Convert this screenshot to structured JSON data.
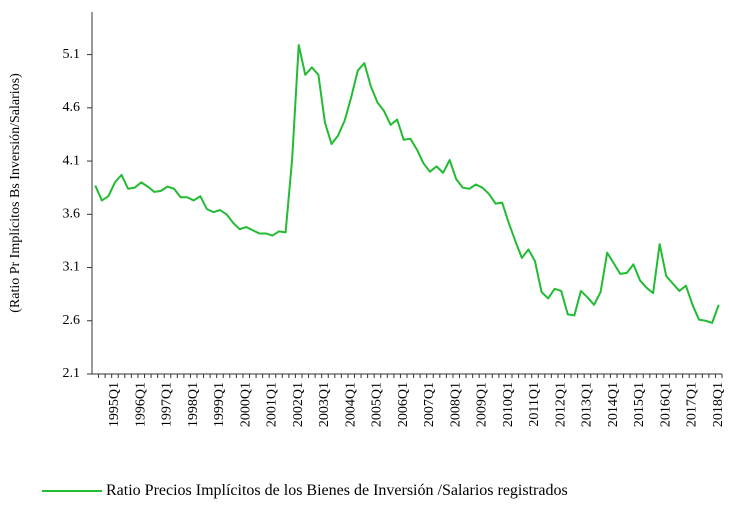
{
  "chart_data": {
    "type": "line",
    "y_label": "(Ratio Pr Implícitos Bs Inversión/Salarios)",
    "categories": [
      null,
      null,
      null,
      "1995Q1",
      null,
      null,
      null,
      "1996Q1",
      null,
      null,
      null,
      "1997Q1",
      null,
      null,
      null,
      "1998Q1",
      null,
      null,
      null,
      "1999Q1",
      null,
      null,
      null,
      "2000Q1",
      null,
      null,
      null,
      "2001Q1",
      null,
      null,
      null,
      "2002Q1",
      null,
      null,
      null,
      "2003Q1",
      null,
      null,
      null,
      "2004Q1",
      null,
      null,
      null,
      "2005Q1",
      null,
      null,
      null,
      "2006Q1",
      null,
      null,
      null,
      "2007Q1",
      null,
      null,
      null,
      "2008Q1",
      null,
      null,
      null,
      "2009Q1",
      null,
      null,
      null,
      "2010Q1",
      null,
      null,
      null,
      "2011Q1",
      null,
      null,
      null,
      "2012Q1",
      null,
      null,
      null,
      "2013Q1",
      null,
      null,
      null,
      "2014Q1",
      null,
      null,
      null,
      "2015Q1",
      null,
      null,
      null,
      "2016Q1",
      null,
      null,
      null,
      "2017Q1",
      null,
      null,
      null,
      "2018Q1"
    ],
    "series": [
      {
        "name": "Ratio Precios Implícitos de los Bienes de Inversión /Salarios registrados",
        "color": "#22bb33",
        "values": [
          3.87,
          3.73,
          3.77,
          3.9,
          3.97,
          3.84,
          3.85,
          3.9,
          3.86,
          3.81,
          3.82,
          3.86,
          3.84,
          3.76,
          3.76,
          3.73,
          3.77,
          3.65,
          3.62,
          3.64,
          3.6,
          3.52,
          3.46,
          3.48,
          3.45,
          3.42,
          3.42,
          3.4,
          3.44,
          3.43,
          4.12,
          5.19,
          4.91,
          4.98,
          4.91,
          4.46,
          4.26,
          4.34,
          4.48,
          4.7,
          4.95,
          5.02,
          4.8,
          4.65,
          4.57,
          4.44,
          4.49,
          4.3,
          4.31,
          4.21,
          4.08,
          4.0,
          4.05,
          3.99,
          4.11,
          3.93,
          3.85,
          3.84,
          3.88,
          3.85,
          3.79,
          3.7,
          3.71,
          3.52,
          3.35,
          3.19,
          3.27,
          3.16,
          2.87,
          2.81,
          2.9,
          2.88,
          2.66,
          2.65,
          2.88,
          2.82,
          2.75,
          2.87,
          3.24,
          3.14,
          3.04,
          3.05,
          3.13,
          2.98,
          2.91,
          2.86,
          3.32,
          3.02,
          2.95,
          2.88,
          2.93,
          2.75,
          2.61,
          2.6,
          2.58,
          2.75
        ]
      }
    ],
    "ylim": [
      2.1,
      5.5
    ],
    "yticks": [
      2.1,
      2.6,
      3.1,
      3.6,
      4.1,
      4.6,
      5.1
    ],
    "legend": "bottom"
  }
}
